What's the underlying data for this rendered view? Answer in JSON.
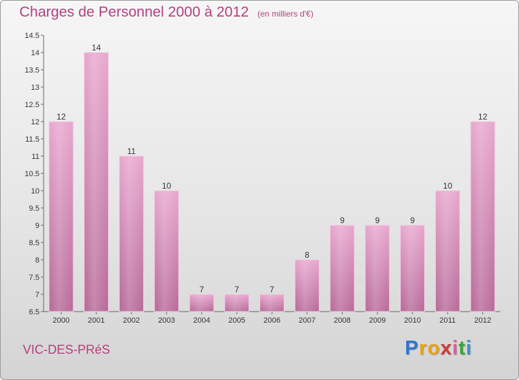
{
  "header": {
    "title": "Charges de Personnel 2000 à 2012",
    "subtitle": "(en milliers d'€)"
  },
  "footer": {
    "commune": "VIC-DES-PRéS",
    "brand_letters": [
      "P",
      "r",
      "o",
      "x",
      "i",
      "t",
      "i"
    ],
    "brand_colors": [
      "#2f76c9",
      "#e8a21c",
      "#e8a21c",
      "#cc3b3b",
      "#d95f9a",
      "#3aa23a",
      "#3a8fcf"
    ]
  },
  "colors": {
    "title": "#b3407e",
    "bar_top": "#e8a8cf",
    "bar_bottom": "#b86c9a"
  },
  "chart_data": {
    "type": "bar",
    "title": "Charges de Personnel 2000 à 2012",
    "subtitle": "(en milliers d'€)",
    "xlabel": "",
    "ylabel": "",
    "categories": [
      "2000",
      "2001",
      "2002",
      "2003",
      "2004",
      "2005",
      "2006",
      "2007",
      "2008",
      "2009",
      "2010",
      "2011",
      "2012"
    ],
    "values": [
      12,
      14,
      11,
      10,
      7,
      7,
      7,
      8,
      9,
      9,
      9,
      10,
      12
    ],
    "ylim": [
      6.5,
      14.5
    ],
    "yticks": [
      "6.5",
      "7",
      "7.5",
      "8",
      "8.5",
      "9",
      "9.5",
      "10",
      "10.5",
      "11",
      "11.5",
      "12",
      "12.5",
      "13",
      "13.5",
      "14",
      "14.5"
    ],
    "grid": false,
    "legend": "none"
  }
}
